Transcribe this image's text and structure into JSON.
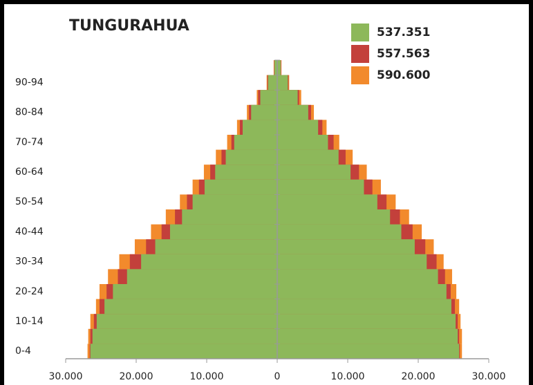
{
  "chart_data": {
    "type": "pyramid",
    "title": "TUNGURAHUA",
    "categories": [
      "0-4",
      null,
      "10-14",
      null,
      "20-24",
      null,
      "30-34",
      null,
      "40-44",
      null,
      "50-54",
      null,
      "60-64",
      null,
      "70-74",
      null,
      "80-84",
      null,
      "90-94",
      null
    ],
    "series": [
      {
        "name": "590.600",
        "color": "#f28a2c",
        "left": [
          26900,
          26800,
          26500,
          25700,
          25200,
          24000,
          22400,
          20200,
          17900,
          15800,
          13800,
          12000,
          10400,
          8700,
          7100,
          5700,
          4300,
          2900,
          1500,
          500
        ],
        "right": [
          26200,
          26200,
          26000,
          25800,
          25400,
          24800,
          23600,
          22200,
          20500,
          18700,
          16800,
          14700,
          12700,
          10700,
          8800,
          7000,
          5200,
          3400,
          1700,
          600
        ]
      },
      {
        "name": "557.563",
        "color": "#c3403b",
        "left": [
          26600,
          26500,
          26000,
          25200,
          24200,
          22600,
          20900,
          18600,
          16400,
          14500,
          12800,
          11100,
          9500,
          7900,
          6500,
          5300,
          4000,
          2700,
          1400,
          450
        ],
        "right": [
          25900,
          25800,
          25600,
          25200,
          24600,
          23800,
          22600,
          21000,
          19200,
          17400,
          15500,
          13500,
          11600,
          9700,
          8000,
          6400,
          4800,
          3100,
          1600,
          550
        ]
      },
      {
        "name": "537.351",
        "color": "#8db85a",
        "left": [
          26500,
          26200,
          25600,
          24500,
          23300,
          21300,
          19300,
          17300,
          15200,
          13500,
          12000,
          10300,
          8800,
          7300,
          6100,
          4900,
          3700,
          2400,
          1300,
          400
        ],
        "right": [
          25800,
          25600,
          25300,
          24700,
          24000,
          22800,
          21200,
          19500,
          17600,
          16000,
          14200,
          12300,
          10400,
          8700,
          7200,
          5800,
          4400,
          2900,
          1500,
          500
        ]
      }
    ],
    "xlim": [
      -30000,
      30000
    ],
    "xticks": [
      {
        "value": -30000,
        "label": "30.000"
      },
      {
        "value": -20000,
        "label": "20.000"
      },
      {
        "value": -10000,
        "label": "10.000"
      },
      0,
      {
        "value": 10000,
        "label": "10.000"
      },
      {
        "value": 20000,
        "label": "20.000"
      },
      {
        "value": 30000,
        "label": "30.000"
      }
    ]
  }
}
